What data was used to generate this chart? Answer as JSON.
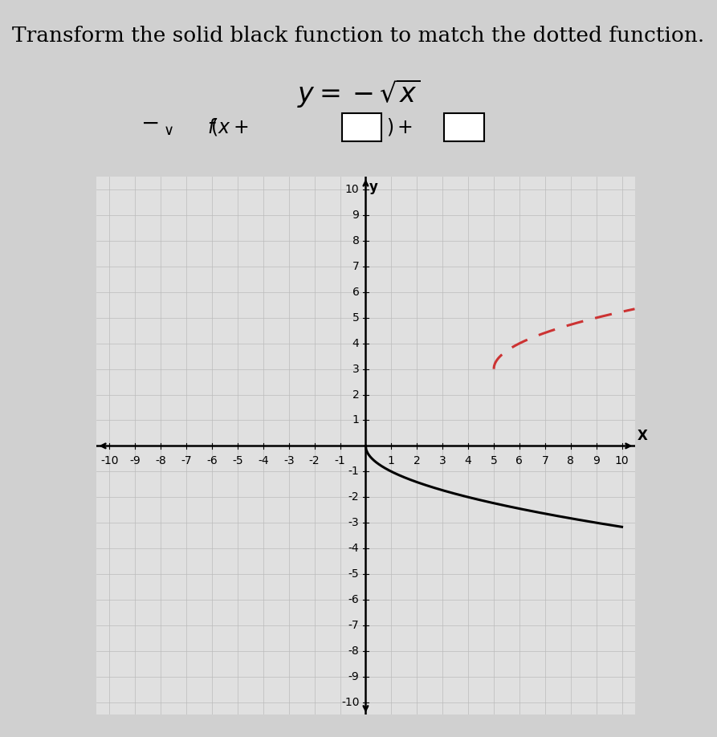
{
  "title": "Transform the solid black function to match the dotted function.",
  "xlim": [
    -10.5,
    10.5
  ],
  "ylim": [
    -10.5,
    10.5
  ],
  "xticks": [
    -10,
    -9,
    -8,
    -7,
    -6,
    -5,
    -4,
    -3,
    -2,
    -1,
    1,
    2,
    3,
    4,
    5,
    6,
    7,
    8,
    9,
    10
  ],
  "yticks": [
    -10,
    -9,
    -8,
    -7,
    -6,
    -5,
    -4,
    -3,
    -2,
    -1,
    1,
    2,
    3,
    4,
    5,
    6,
    7,
    8,
    9,
    10
  ],
  "grid_color": "#bbbbbb",
  "plot_bg_color": "#e0e0e0",
  "fig_bg_color": "#d0d0d0",
  "solid_color": "#000000",
  "dotted_color": "#cc3333",
  "solid_linewidth": 2.2,
  "dotted_linewidth": 2.2,
  "title_fontsize": 19,
  "tick_fontsize": 10,
  "solid_x_start": 0,
  "solid_x_end": 10,
  "dotted_x_start": 5,
  "dotted_x_end": 10.5
}
